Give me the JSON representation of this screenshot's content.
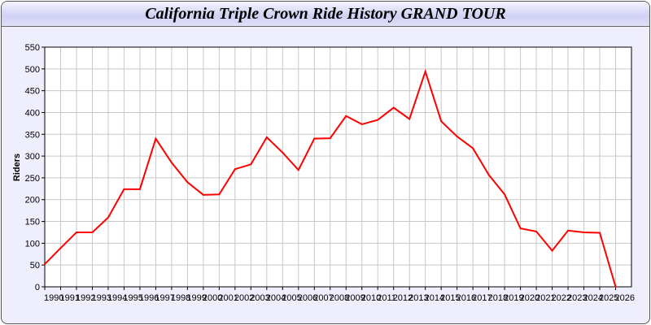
{
  "chart_data": {
    "type": "line",
    "title": "California Triple Crown Ride History GRAND TOUR",
    "xlabel": "",
    "ylabel": "Riders",
    "ylim": [
      0,
      550
    ],
    "xlim": [
      1990,
      2027
    ],
    "yticks": [
      0,
      50,
      100,
      150,
      200,
      250,
      300,
      350,
      400,
      450,
      500,
      550
    ],
    "grid": true,
    "line_color": "#ff0000",
    "x": [
      1990,
      1991,
      1992,
      1993,
      1994,
      1995,
      1996,
      1997,
      1998,
      1999,
      2000,
      2001,
      2002,
      2003,
      2004,
      2005,
      2006,
      2007,
      2008,
      2009,
      2010,
      2011,
      2012,
      2013,
      2014,
      2015,
      2016,
      2017,
      2018,
      2019,
      2020,
      2021,
      2022,
      2023,
      2024,
      2025,
      2026
    ],
    "series": [
      {
        "values": [
          52,
          89,
          125,
          125,
          159,
          224,
          224,
          340,
          285,
          240,
          211,
          212,
          270,
          281,
          343,
          308,
          268,
          340,
          341,
          392,
          373,
          383,
          411,
          385,
          494,
          380,
          345,
          318,
          257,
          212,
          134,
          127,
          83,
          129,
          125,
          124,
          0
        ]
      }
    ]
  }
}
